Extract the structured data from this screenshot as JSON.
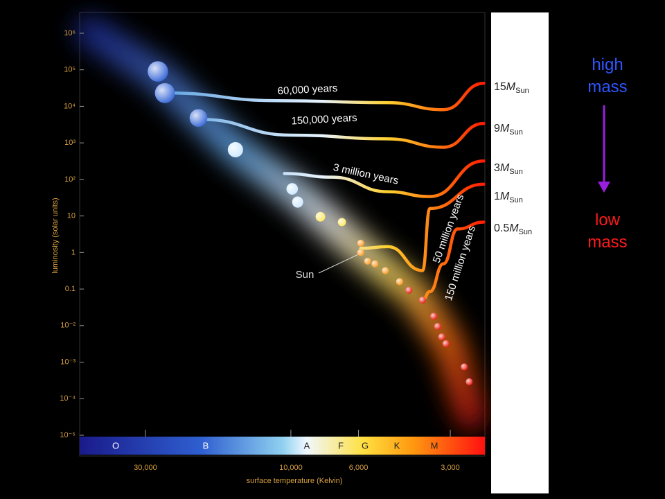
{
  "chart_data": {
    "type": "scatter",
    "xscale": "log",
    "yscale": "log",
    "xlabel": "surface temperature (Kelvin)",
    "ylabel": "luminosity (solar units)",
    "xlim": [
      49300,
      2310
    ],
    "ylim": [
      1e-05,
      3700000
    ],
    "xticks": [
      {
        "value": 30000,
        "label": "30,000"
      },
      {
        "value": 10000,
        "label": "10,000"
      },
      {
        "value": 6000,
        "label": "6,000"
      },
      {
        "value": 3000,
        "label": "3,000"
      }
    ],
    "yticks": [
      {
        "value": 1000000,
        "label": "10⁶"
      },
      {
        "value": 100000,
        "label": "10⁵"
      },
      {
        "value": 10000,
        "label": "10⁴"
      },
      {
        "value": 1000,
        "label": "10³"
      },
      {
        "value": 100,
        "label": "10²"
      },
      10,
      1,
      0.1,
      {
        "value": 0.01,
        "label": "10⁻²"
      },
      {
        "value": 0.001,
        "label": "10⁻³"
      },
      {
        "value": 0.0001,
        "label": "10⁻⁴"
      },
      {
        "value": 1e-05,
        "label": "10⁻⁵"
      }
    ],
    "series": [
      {
        "x": [
          27300,
          25900,
          20100,
          15200,
          9900,
          9500,
          8000,
          6800,
          5900,
          5600,
          5300,
          4900,
          4400,
          4100,
          3700,
          3400,
          3300,
          3200,
          3100,
          2700,
          2600
        ],
        "values": [
          90000,
          23000,
          4800,
          650,
          55,
          24,
          9.5,
          6.8,
          1.8,
          0.58,
          0.49,
          0.32,
          0.16,
          0.093,
          0.05,
          0.018,
          0.0095,
          0.0049,
          0.0032,
          0.00074,
          0.00029
        ]
      }
    ],
    "annotation": {
      "text": "Sun",
      "x": 5900,
      "y": 1
    },
    "tracks": [
      {
        "mass": "15",
        "symbol": "M",
        "subscript": "Sun",
        "time": "60,000 years",
        "x": [
          2330,
          3160,
          4810,
          11100,
          25600
        ],
        "values": [
          42800,
          8100,
          12600,
          14300,
          23200
        ]
      },
      {
        "mass": "9",
        "symbol": "M",
        "subscript": "Sun",
        "time": "150,000 years",
        "x": [
          2330,
          3160,
          4810,
          10000,
          19700
        ],
        "values": [
          3400,
          760,
          1290,
          1630,
          4400
        ]
      },
      {
        "mass": "3",
        "symbol": "M",
        "subscript": "Sun",
        "time": "3 million years",
        "x": [
          2330,
          3500,
          4810,
          7300,
          10500
        ],
        "values": [
          320,
          34,
          46,
          115,
          145
        ]
      },
      {
        "mass": "1",
        "symbol": "M",
        "subscript": "Sun",
        "time": "50 million years",
        "x": [
          2330,
          3500,
          3700,
          4810,
          5900
        ],
        "values": [
          74,
          16,
          0.32,
          1.45,
          1.3
        ]
      },
      {
        "mass": "0.5",
        "symbol": "M",
        "subscript": "Sun",
        "time": "150 million years",
        "x": [
          2330,
          2840,
          3160,
          3500,
          3700
        ],
        "values": [
          6.8,
          4.4,
          0.49,
          0.085,
          0.05
        ]
      }
    ],
    "spectral_classes": [
      "O",
      "B",
      "A",
      "F",
      "G",
      "K",
      "M"
    ],
    "legend": {
      "high": {
        "text": "high mass",
        "color": "#2f55ff"
      },
      "low": {
        "text": "low mass",
        "color": "#ff1a1a"
      },
      "arrow_color": "#9a1ee0"
    }
  }
}
